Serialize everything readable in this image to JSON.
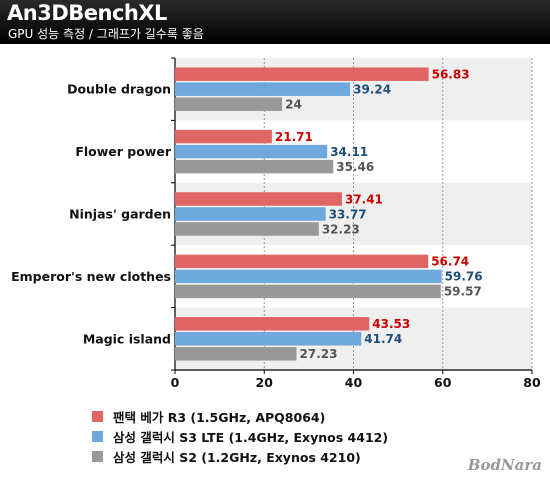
{
  "header": {
    "title": "An3DBenchXL",
    "subtitle": "GPU 성능 측정 / 그래프가 길수록 좋음"
  },
  "logo": {
    "text": "BodNara"
  },
  "chart_data": {
    "type": "bar",
    "orientation": "horizontal",
    "categories": [
      "Double dragon",
      "Flower power",
      "Ninjas' garden",
      "Emperor's new clothes",
      "Magic island"
    ],
    "series": [
      {
        "name": "팬택 베가 R3 (1.5GHz, APQ8064)",
        "color": "#e06666",
        "label_color": "#cc0000",
        "values": [
          56.83,
          21.71,
          37.41,
          56.74,
          43.53
        ],
        "labels": [
          "56.83",
          "21.71",
          "37.41",
          "56.74",
          "43.53"
        ]
      },
      {
        "name": "삼성 갤럭시 S3 LTE (1.4GHz, Exynos 4412)",
        "color": "#6fa8dc",
        "label_color": "#1f4e79",
        "values": [
          39.24,
          34.11,
          33.77,
          59.76,
          41.74
        ],
        "labels": [
          "39.24",
          "34.11",
          "33.77",
          "59.76",
          "41.74"
        ]
      },
      {
        "name": "삼성 갤럭시 S2 (1.2GHz, Exynos 4210)",
        "color": "#999999",
        "label_color": "#555555",
        "values": [
          24,
          35.46,
          32.23,
          59.57,
          27.23
        ],
        "labels": [
          "24",
          "35.46",
          "32.23",
          "59.57",
          "27.23"
        ]
      }
    ],
    "xlim": [
      0,
      80
    ],
    "xticks": [
      "0",
      "20",
      "40",
      "60",
      "80"
    ],
    "grid": true,
    "legend_position": "bottom"
  }
}
